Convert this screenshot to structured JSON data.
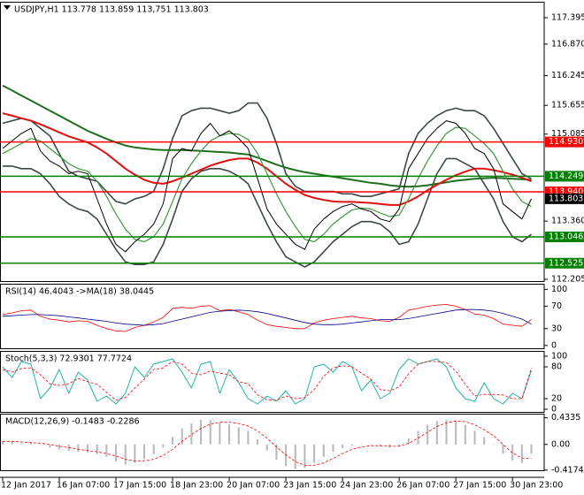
{
  "chart_data": [
    {
      "type": "line",
      "title": "USDJPY,H1  113.778 113.859 113,751 113.803",
      "categories": [
        "12 Jan 2017",
        null,
        null,
        null,
        null,
        null,
        "16 Jan 07:00",
        null,
        null,
        null,
        null,
        null,
        "17 Jan 15:00",
        null,
        null,
        null,
        null,
        null,
        "18 Jan 23:00",
        null,
        null,
        null,
        null,
        null,
        "20 Jan 07:00",
        null,
        null,
        null,
        null,
        null,
        "23 Jan 15:00",
        null,
        null,
        null,
        null,
        null,
        "24 Jan 23:00",
        null,
        null,
        null,
        null,
        null,
        "26 Jan 07:00",
        null,
        null,
        null,
        null,
        null,
        "27 Jan 15:00",
        null,
        null,
        null,
        null,
        null,
        "30 Jan 23:00",
        null,
        null
      ],
      "ylim": [
        112.17,
        117.71
      ],
      "yticks": [
        117.395,
        {
          "value": 116.87,
          "label": "116.870"
        },
        116.245,
        115.655,
        115.085,
        {
          "value": 113.36,
          "label": "113.360"
        },
        112.205
      ],
      "levels": [
        {
          "value": 114.93,
          "label": "114.930",
          "color": "#ff0000"
        },
        {
          "value": 114.249,
          "label": "114.249",
          "color": "#008000"
        },
        {
          "value": 113.94,
          "label": "113.940",
          "color": "#ff0000"
        },
        {
          "value": 113.046,
          "label": "113.046",
          "color": "#008000"
        },
        {
          "value": 112.525,
          "label": "112.525",
          "color": "#008000"
        }
      ],
      "last": 113.803,
      "series": [
        {
          "color": "#3c4848",
          "width": 1.6,
          "values": [
            115.3,
            115.35,
            115.4,
            115.35,
            115.2,
            115.05,
            114.7,
            114.35,
            114.25,
            114.2,
            114.15,
            113.95,
            113.75,
            113.7,
            113.8,
            113.85,
            113.95,
            114.4,
            115.0,
            115.45,
            115.55,
            115.6,
            115.6,
            115.55,
            115.5,
            115.55,
            115.7,
            115.7,
            115.4,
            114.9,
            114.3,
            114.05,
            113.95,
            113.95,
            113.95,
            113.95,
            113.9,
            113.9,
            113.85,
            113.85,
            113.9,
            113.95,
            114.0,
            114.7,
            115.1,
            115.3,
            115.45,
            115.55,
            115.6,
            115.55,
            115.55,
            115.45,
            115.2,
            114.9,
            114.6,
            114.3,
            114.2
          ]
        },
        {
          "color": "#3c4848",
          "width": 1.6,
          "values": [
            114.45,
            114.45,
            114.4,
            114.4,
            114.3,
            114.1,
            113.85,
            113.7,
            113.6,
            113.55,
            113.4,
            113.1,
            112.8,
            112.55,
            112.5,
            112.5,
            112.55,
            112.9,
            113.4,
            113.95,
            114.2,
            114.35,
            114.4,
            114.4,
            114.35,
            114.25,
            114.1,
            113.7,
            113.3,
            112.95,
            112.65,
            112.55,
            112.45,
            112.55,
            112.75,
            112.95,
            113.1,
            113.25,
            113.35,
            113.35,
            113.3,
            113.15,
            112.9,
            112.95,
            113.3,
            113.8,
            114.3,
            114.6,
            114.6,
            114.5,
            114.4,
            114.1,
            113.8,
            113.35,
            113.05,
            112.95,
            113.1
          ]
        },
        {
          "color": "#1e6e1e",
          "width": 2,
          "values": [
            116.05,
            115.95,
            115.85,
            115.75,
            115.65,
            115.55,
            115.45,
            115.35,
            115.25,
            115.15,
            115.07,
            114.99,
            114.92,
            114.86,
            114.82,
            114.8,
            114.78,
            114.77,
            114.77,
            114.77,
            114.76,
            114.75,
            114.74,
            114.73,
            114.72,
            114.7,
            114.68,
            114.62,
            114.55,
            114.48,
            114.42,
            114.37,
            114.33,
            114.3,
            114.27,
            114.24,
            114.21,
            114.18,
            114.15,
            114.12,
            114.1,
            114.07,
            114.05,
            114.04,
            114.05,
            114.07,
            114.1,
            114.13,
            114.16,
            114.18,
            114.2,
            114.21,
            114.22,
            114.21,
            114.2,
            114.19,
            114.18
          ]
        },
        {
          "color": "#e01010",
          "width": 2,
          "values": [
            115.5,
            115.45,
            115.4,
            115.35,
            115.28,
            115.2,
            115.12,
            115.04,
            114.98,
            114.92,
            114.82,
            114.7,
            114.55,
            114.4,
            114.28,
            114.18,
            114.12,
            114.1,
            114.15,
            114.22,
            114.3,
            114.38,
            114.46,
            114.52,
            114.57,
            114.6,
            114.6,
            114.52,
            114.4,
            114.25,
            114.1,
            113.98,
            113.88,
            113.82,
            113.78,
            113.75,
            113.74,
            113.74,
            113.73,
            113.72,
            113.7,
            113.68,
            113.68,
            113.75,
            113.85,
            113.97,
            114.08,
            114.18,
            114.27,
            114.34,
            114.4,
            114.4,
            114.37,
            114.33,
            114.28,
            114.22,
            114.15
          ]
        },
        {
          "color": "#3a9a3a",
          "width": 1.2,
          "values": [
            114.7,
            114.8,
            114.9,
            115.0,
            114.95,
            114.8,
            114.65,
            114.5,
            114.4,
            114.35,
            114.15,
            113.85,
            113.5,
            113.2,
            113.0,
            112.95,
            113.05,
            113.3,
            113.75,
            114.2,
            114.5,
            114.75,
            114.95,
            115.05,
            115.1,
            115.08,
            114.98,
            114.7,
            114.3,
            113.9,
            113.55,
            113.25,
            113.0,
            112.95,
            113.1,
            113.3,
            113.45,
            113.58,
            113.62,
            113.6,
            113.52,
            113.45,
            113.48,
            113.8,
            114.2,
            114.55,
            114.85,
            115.1,
            115.22,
            115.2,
            115.05,
            114.9,
            114.7,
            114.35,
            114.0,
            113.75,
            113.65
          ]
        },
        {
          "color": "#000000",
          "width": 1,
          "values": [
            114.8,
            114.95,
            115.1,
            115.2,
            114.75,
            114.55,
            114.45,
            114.3,
            114.35,
            114.3,
            113.8,
            113.3,
            112.9,
            112.75,
            112.95,
            113.1,
            113.3,
            113.7,
            114.6,
            114.8,
            114.75,
            115.1,
            115.3,
            115.05,
            115.15,
            115.0,
            114.8,
            114.2,
            113.6,
            113.3,
            113.1,
            112.9,
            112.8,
            113.2,
            113.4,
            113.55,
            113.65,
            113.7,
            113.6,
            113.55,
            113.4,
            113.35,
            113.6,
            114.4,
            114.7,
            115.0,
            115.2,
            115.35,
            115.3,
            115.1,
            114.8,
            114.7,
            114.4,
            113.7,
            113.55,
            113.4,
            113.8
          ]
        }
      ]
    },
    {
      "type": "line",
      "title": "RSI(14) 46.4043  ->MA(18) 38.0445",
      "ylim": [
        -5,
        110
      ],
      "yticks": [
        100,
        70,
        30,
        0
      ],
      "series": [
        {
          "color": "#ff0000",
          "width": 0.8,
          "values": [
            55,
            58,
            62,
            63,
            52,
            47,
            45,
            42,
            44,
            43,
            36,
            30,
            26,
            25,
            32,
            36,
            42,
            50,
            66,
            68,
            66,
            70,
            71,
            62,
            64,
            60,
            55,
            45,
            37,
            34,
            32,
            30,
            30,
            40,
            45,
            48,
            50,
            52,
            49,
            48,
            44,
            43,
            50,
            63,
            66,
            70,
            72,
            73,
            70,
            64,
            56,
            54,
            48,
            38,
            36,
            34,
            46
          ]
        },
        {
          "color": "#000080",
          "width": 0.8,
          "values": [
            52,
            53,
            54,
            55,
            55,
            54,
            53,
            51,
            49,
            47,
            45,
            43,
            40,
            38,
            37,
            36,
            37,
            39,
            43,
            47,
            51,
            55,
            59,
            61,
            62,
            63,
            62,
            60,
            57,
            53,
            49,
            45,
            41,
            38,
            37,
            37,
            38,
            40,
            42,
            44,
            46,
            46,
            46,
            48,
            51,
            54,
            57,
            60,
            63,
            64,
            64,
            63,
            61,
            57,
            52,
            47,
            38
          ]
        }
      ]
    },
    {
      "type": "line",
      "title": "Stoch(5,3,3) 72.9301 77.7724",
      "ylim": [
        -5,
        110
      ],
      "yticks": [
        100,
        80,
        20,
        0
      ],
      "series": [
        {
          "color": "#20b2aa",
          "width": 1,
          "values": [
            80,
            60,
            90,
            85,
            20,
            40,
            75,
            30,
            70,
            55,
            15,
            25,
            10,
            30,
            80,
            60,
            85,
            90,
            95,
            70,
            40,
            85,
            90,
            30,
            75,
            50,
            20,
            10,
            25,
            15,
            35,
            10,
            20,
            80,
            85,
            70,
            90,
            80,
            35,
            55,
            20,
            30,
            75,
            95,
            85,
            90,
            95,
            80,
            40,
            20,
            15,
            50,
            20,
            10,
            30,
            20,
            73
          ]
        },
        {
          "color": "#ff0000",
          "width": 0.8,
          "dash": true,
          "values": [
            75,
            70,
            77,
            78,
            65,
            48,
            45,
            48,
            58,
            52,
            47,
            32,
            17,
            22,
            40,
            57,
            75,
            78,
            90,
            85,
            68,
            65,
            72,
            68,
            65,
            52,
            48,
            27,
            18,
            17,
            25,
            20,
            22,
            37,
            62,
            78,
            82,
            80,
            68,
            57,
            37,
            35,
            42,
            67,
            85,
            90,
            90,
            88,
            72,
            47,
            25,
            28,
            28,
            27,
            20,
            20,
            78
          ]
        }
      ]
    },
    {
      "type": "bar",
      "title": "MACD(12,26,9) -0.1483 -0.2286",
      "ylim": [
        -0.42,
        0.5
      ],
      "yticks": [
        0.4335,
        {
          "value": 0,
          "label": "0.00"
        },
        -0.4174
      ],
      "series": [
        {
          "color": "#b8b8b8",
          "bars": true,
          "values": [
            0.05,
            0.04,
            0.02,
            0.03,
            0.0,
            -0.05,
            -0.08,
            -0.1,
            -0.12,
            -0.13,
            -0.16,
            -0.2,
            -0.28,
            -0.33,
            -0.3,
            -0.24,
            -0.16,
            -0.05,
            0.12,
            0.26,
            0.34,
            0.4,
            0.4,
            0.36,
            0.33,
            0.28,
            0.22,
            0.08,
            -0.1,
            -0.25,
            -0.35,
            -0.4,
            -0.38,
            -0.3,
            -0.2,
            -0.12,
            -0.06,
            -0.02,
            0.0,
            0.0,
            -0.03,
            -0.05,
            -0.03,
            0.1,
            0.22,
            0.32,
            0.38,
            0.4,
            0.38,
            0.32,
            0.22,
            0.12,
            0.0,
            -0.15,
            -0.26,
            -0.3,
            -0.15
          ]
        },
        {
          "color": "#ff0000",
          "width": 0.8,
          "dash": true,
          "values": [
            0.05,
            0.05,
            0.04,
            0.03,
            0.02,
            0.0,
            -0.03,
            -0.05,
            -0.08,
            -0.1,
            -0.12,
            -0.15,
            -0.19,
            -0.24,
            -0.27,
            -0.27,
            -0.24,
            -0.18,
            -0.08,
            0.05,
            0.16,
            0.26,
            0.33,
            0.36,
            0.36,
            0.34,
            0.3,
            0.22,
            0.1,
            -0.04,
            -0.17,
            -0.28,
            -0.34,
            -0.34,
            -0.3,
            -0.23,
            -0.15,
            -0.08,
            -0.04,
            -0.02,
            -0.02,
            -0.03,
            -0.03,
            0.02,
            0.1,
            0.2,
            0.29,
            0.35,
            0.38,
            0.37,
            0.32,
            0.24,
            0.14,
            0.0,
            -0.14,
            -0.22,
            -0.23
          ]
        }
      ]
    }
  ]
}
